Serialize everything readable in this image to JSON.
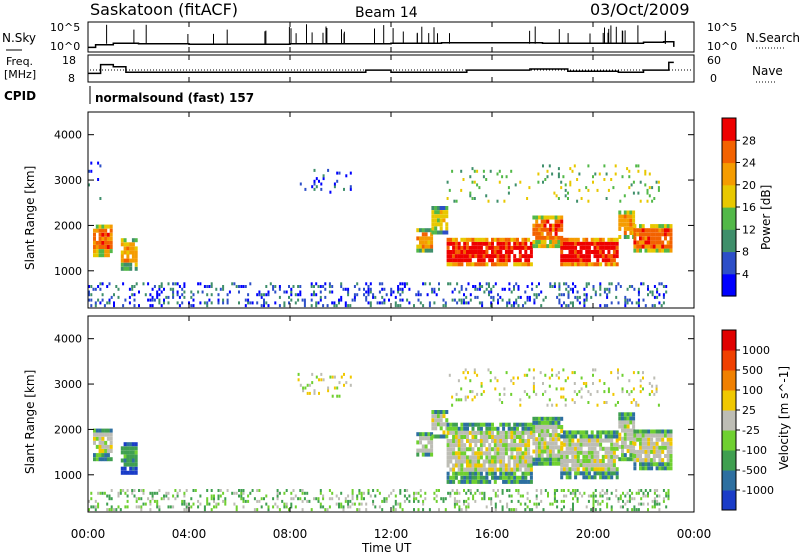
{
  "header": {
    "station": "Saskatoon (fitACF)",
    "beam": "Beam 14",
    "date": "03/Oct/2009"
  },
  "noise_panel": {
    "left_label": "N.Sky",
    "left_ticks": [
      "10^5",
      "10^0"
    ],
    "right_label": "N.Search",
    "right_ticks": [
      "10^5",
      "10^0"
    ]
  },
  "freq_panel": {
    "left_label_1": "Freq.",
    "left_label_2": "[MHz]",
    "left_ticks": [
      "18",
      "8"
    ],
    "right_label": "Nave",
    "right_ticks": [
      "60",
      "0"
    ]
  },
  "cpid": {
    "label": "CPID",
    "value": "normalsound (fast) 157"
  },
  "chart_data": {
    "type": "heatmap",
    "x_axis": {
      "label": "Time UT",
      "ticks": [
        "00:00",
        "04:00",
        "08:00",
        "12:00",
        "16:00",
        "20:00",
        "00:00"
      ],
      "range_hours": [
        0,
        24
      ]
    },
    "y_axis": {
      "label": "Slant Range [km]",
      "ticks": [
        1000,
        2000,
        3000,
        4000
      ],
      "range_km": [
        180,
        4500
      ]
    },
    "panels": [
      {
        "name": "power",
        "colorbar_label": "Power [dB]",
        "colorbar_ticks": [
          "4",
          "8",
          "12",
          "16",
          "20",
          "24",
          "28"
        ],
        "colors": [
          "#0000ff",
          "#2d4fc8",
          "#3f8f6b",
          "#52b848",
          "#e8c800",
          "#f59c00",
          "#f36200",
          "#ee0000"
        ],
        "blocks": [
          {
            "t0": 0.2,
            "t1": 0.9,
            "r0": 1300,
            "r1": 2000,
            "level": 6
          },
          {
            "t0": 1.3,
            "t1": 1.9,
            "r0": 1000,
            "r1": 1700,
            "level": 5
          },
          {
            "t0": 13.0,
            "t1": 13.6,
            "r0": 1400,
            "r1": 1900,
            "level": 5
          },
          {
            "t0": 13.6,
            "t1": 14.2,
            "r0": 1800,
            "r1": 2400,
            "level": 4
          },
          {
            "t0": 14.2,
            "t1": 17.6,
            "r0": 1100,
            "r1": 1650,
            "level": 7
          },
          {
            "t0": 17.6,
            "t1": 18.7,
            "r0": 1500,
            "r1": 2200,
            "level": 6
          },
          {
            "t0": 18.7,
            "t1": 21.0,
            "r0": 1100,
            "r1": 1650,
            "level": 7
          },
          {
            "t0": 21.0,
            "t1": 21.6,
            "r0": 1700,
            "r1": 2300,
            "level": 5
          },
          {
            "t0": 21.6,
            "t1": 23.1,
            "r0": 1400,
            "r1": 2000,
            "level": 6
          }
        ],
        "scatter": [
          {
            "t0": 0.0,
            "t1": 23.0,
            "r0": 200,
            "r1": 700,
            "level": 1,
            "density": 0.25
          },
          {
            "t0": 8.3,
            "t1": 10.4,
            "r0": 2700,
            "r1": 3200,
            "level": 1,
            "density": 0.12
          },
          {
            "t0": 14.2,
            "t1": 22.6,
            "r0": 2500,
            "r1": 3300,
            "level": 3,
            "density": 0.1
          },
          {
            "t0": 0.0,
            "t1": 0.6,
            "r0": 2500,
            "r1": 3400,
            "level": 1,
            "density": 0.1
          }
        ]
      },
      {
        "name": "velocity",
        "colorbar_label": "Velocity [m s^-1]",
        "colorbar_ticks": [
          "1000",
          "500",
          "100",
          "25",
          "-25",
          "-100",
          "-500",
          "-1000"
        ],
        "colors": [
          "#1a3cc8",
          "#2d6fa0",
          "#3f9f50",
          "#6fd030",
          "#bdbdb5",
          "#f0c800",
          "#f08000",
          "#f04000",
          "#e00000"
        ],
        "blocks": [
          {
            "t0": 0.2,
            "t1": 0.9,
            "r0": 1300,
            "r1": 2000,
            "level": 4
          },
          {
            "t0": 1.3,
            "t1": 1.9,
            "r0": 1000,
            "r1": 1700,
            "level": 2
          },
          {
            "t0": 13.0,
            "t1": 13.6,
            "r0": 1400,
            "r1": 1900,
            "level": 4
          },
          {
            "t0": 13.6,
            "t1": 14.2,
            "r0": 1800,
            "r1": 2400,
            "level": 4
          },
          {
            "t0": 14.2,
            "t1": 17.6,
            "r0": 800,
            "r1": 2100,
            "level": 4
          },
          {
            "t0": 17.6,
            "t1": 18.7,
            "r0": 1200,
            "r1": 2200,
            "level": 4
          },
          {
            "t0": 18.7,
            "t1": 21.0,
            "r0": 900,
            "r1": 1900,
            "level": 4
          },
          {
            "t0": 21.0,
            "t1": 21.6,
            "r0": 1300,
            "r1": 2300,
            "level": 4
          },
          {
            "t0": 21.6,
            "t1": 23.1,
            "r0": 1100,
            "r1": 2000,
            "level": 4
          }
        ],
        "scatter": [
          {
            "t0": 0.0,
            "t1": 23.0,
            "r0": 200,
            "r1": 650,
            "level": 3,
            "density": 0.28
          },
          {
            "t0": 8.3,
            "t1": 10.4,
            "r0": 2700,
            "r1": 3200,
            "level": 4,
            "density": 0.15
          },
          {
            "t0": 14.2,
            "t1": 22.6,
            "r0": 2500,
            "r1": 3300,
            "level": 4,
            "density": 0.12
          }
        ]
      }
    ],
    "noise_series_log": [
      {
        "t": 0.0,
        "v": 0.5
      },
      {
        "t": 0.3,
        "v": 1.0
      },
      {
        "t": 1.0,
        "v": 1.3
      },
      {
        "t": 2.0,
        "v": 1.2
      },
      {
        "t": 4.0,
        "v": 1.1
      },
      {
        "t": 6.0,
        "v": 1.1
      },
      {
        "t": 8.0,
        "v": 1.2
      },
      {
        "t": 10.0,
        "v": 1.2
      },
      {
        "t": 12.0,
        "v": 1.3
      },
      {
        "t": 14.0,
        "v": 1.4
      },
      {
        "t": 16.0,
        "v": 1.4
      },
      {
        "t": 18.0,
        "v": 1.3
      },
      {
        "t": 20.0,
        "v": 1.3
      },
      {
        "t": 22.0,
        "v": 1.5
      },
      {
        "t": 22.8,
        "v": 1.6
      },
      {
        "t": 23.2,
        "v": 0.6
      }
    ],
    "freq_series_mhz": [
      {
        "t": 0.0,
        "v": 11
      },
      {
        "t": 0.5,
        "v": 15
      },
      {
        "t": 1.0,
        "v": 14
      },
      {
        "t": 1.5,
        "v": 11.5
      },
      {
        "t": 10.5,
        "v": 11.5
      },
      {
        "t": 11.0,
        "v": 12.5
      },
      {
        "t": 12.0,
        "v": 11.5
      },
      {
        "t": 14.0,
        "v": 11.5
      },
      {
        "t": 15.0,
        "v": 12.5
      },
      {
        "t": 17.5,
        "v": 13
      },
      {
        "t": 19.0,
        "v": 12
      },
      {
        "t": 21.0,
        "v": 11.5
      },
      {
        "t": 22.0,
        "v": 12.5
      },
      {
        "t": 23.0,
        "v": 16
      }
    ]
  }
}
